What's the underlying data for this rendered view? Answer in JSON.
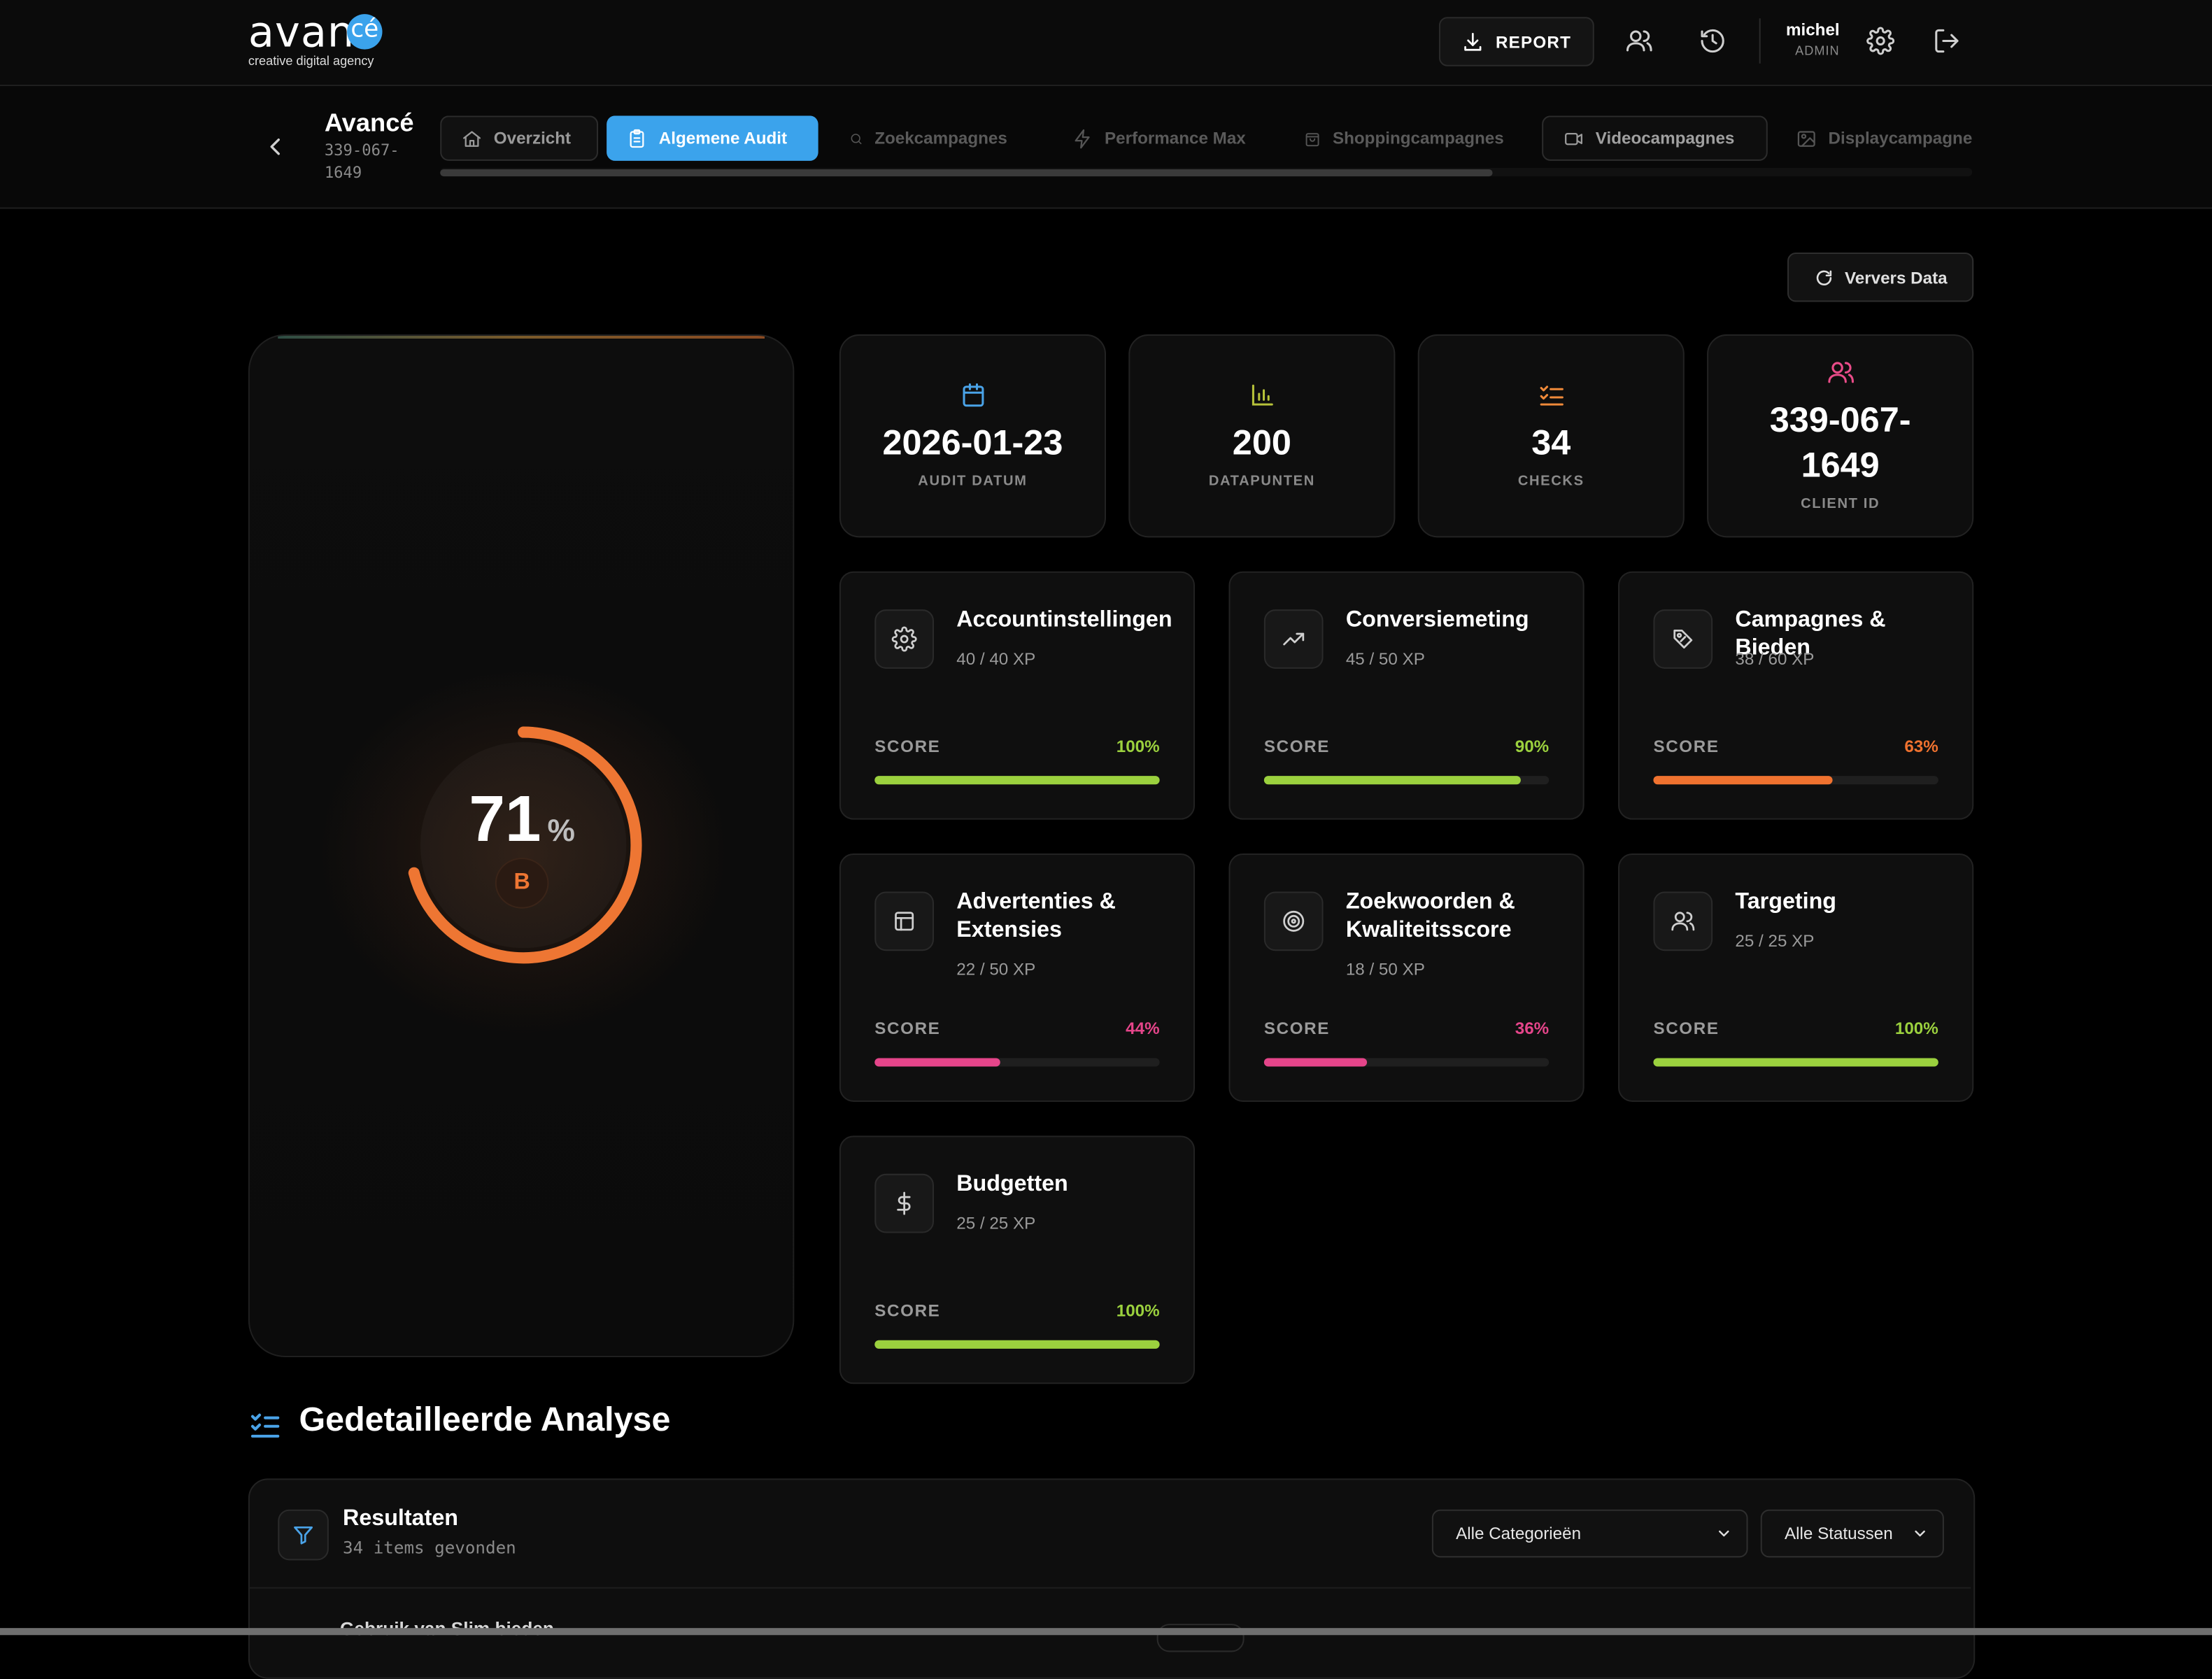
{
  "header": {
    "logo_text": "avan",
    "logo_badge": "cé",
    "logo_sub": "creative digital agency",
    "report_label": "REPORT",
    "user_name": "michel",
    "user_role": "ADMIN"
  },
  "client": {
    "name": "Avancé",
    "id": "339-067-1649"
  },
  "tabs": [
    {
      "label": "Overzicht",
      "icon": "home-icon",
      "state": "bordered"
    },
    {
      "label": "Algemene Audit",
      "icon": "clipboard-icon",
      "state": "active"
    },
    {
      "label": "Zoekcampagnes",
      "icon": "search-icon",
      "state": "dim"
    },
    {
      "label": "Performance Max",
      "icon": "lightning-icon",
      "state": "dim"
    },
    {
      "label": "Shoppingcampagnes",
      "icon": "shopping-bag-icon",
      "state": "dim"
    },
    {
      "label": "Videocampagnes",
      "icon": "video-icon",
      "state": "boxed"
    },
    {
      "label": "Displaycampagnes",
      "icon": "image-icon",
      "state": "dim"
    }
  ],
  "refresh_label": "Ververs Data",
  "gauge": {
    "score": 71,
    "unit": "%",
    "grade": "B",
    "color": "#ee7633"
  },
  "stats": [
    {
      "value": "2026-01-23",
      "label": "AUDIT DATUM",
      "icon": "calendar-icon",
      "color": "#4aa3e8"
    },
    {
      "value": "200",
      "label": "DATAPUNTEN",
      "icon": "bar-chart-icon",
      "color": "#b7c23a"
    },
    {
      "value": "34",
      "label": "CHECKS",
      "icon": "checklist-icon",
      "color": "#f08a3a"
    },
    {
      "value": "339-067-1649",
      "label": "CLIENT ID",
      "icon": "users-icon",
      "color": "#ea4c89"
    }
  ],
  "categories": [
    {
      "title": "Accountinstellingen",
      "xp": "40 / 40 XP",
      "score_label": "SCORE",
      "pct": "100%",
      "value": 100,
      "color": "#9bd13e",
      "icon": "gear-icon"
    },
    {
      "title": "Conversiemeting",
      "xp": "45 / 50 XP",
      "score_label": "SCORE",
      "pct": "90%",
      "value": 90,
      "color": "#9bd13e",
      "icon": "trending-up-icon"
    },
    {
      "title": "Campagnes & Bieden",
      "xp": "38 / 60 XP",
      "score_label": "SCORE",
      "pct": "63%",
      "value": 63,
      "color": "#f0722f",
      "icon": "price-tag-icon"
    },
    {
      "title": "Advertenties & Extensies",
      "xp": "22 / 50 XP",
      "score_label": "SCORE",
      "pct": "44%",
      "value": 44,
      "color": "#e5458a",
      "icon": "layout-icon"
    },
    {
      "title": "Zoekwoorden & Kwaliteitsscore",
      "xp": "18 / 50 XP",
      "score_label": "SCORE",
      "pct": "36%",
      "value": 36,
      "color": "#e5458a",
      "icon": "target-icon"
    },
    {
      "title": "Targeting",
      "xp": "25 / 25 XP",
      "score_label": "SCORE",
      "pct": "100%",
      "value": 100,
      "color": "#9bd13e",
      "icon": "users-icon"
    },
    {
      "title": "Budgetten",
      "xp": "25 / 25 XP",
      "score_label": "SCORE",
      "pct": "100%",
      "value": 100,
      "color": "#9bd13e",
      "icon": "dollar-icon"
    }
  ],
  "analysis": {
    "title": "Gedetailleerde Analyse",
    "results_title": "Resultaten",
    "results_count": "34 items gevonden",
    "category_filter": "Alle Categorieën",
    "status_filter": "Alle Statussen",
    "first_item": "Gebruik van Slim bieden"
  }
}
